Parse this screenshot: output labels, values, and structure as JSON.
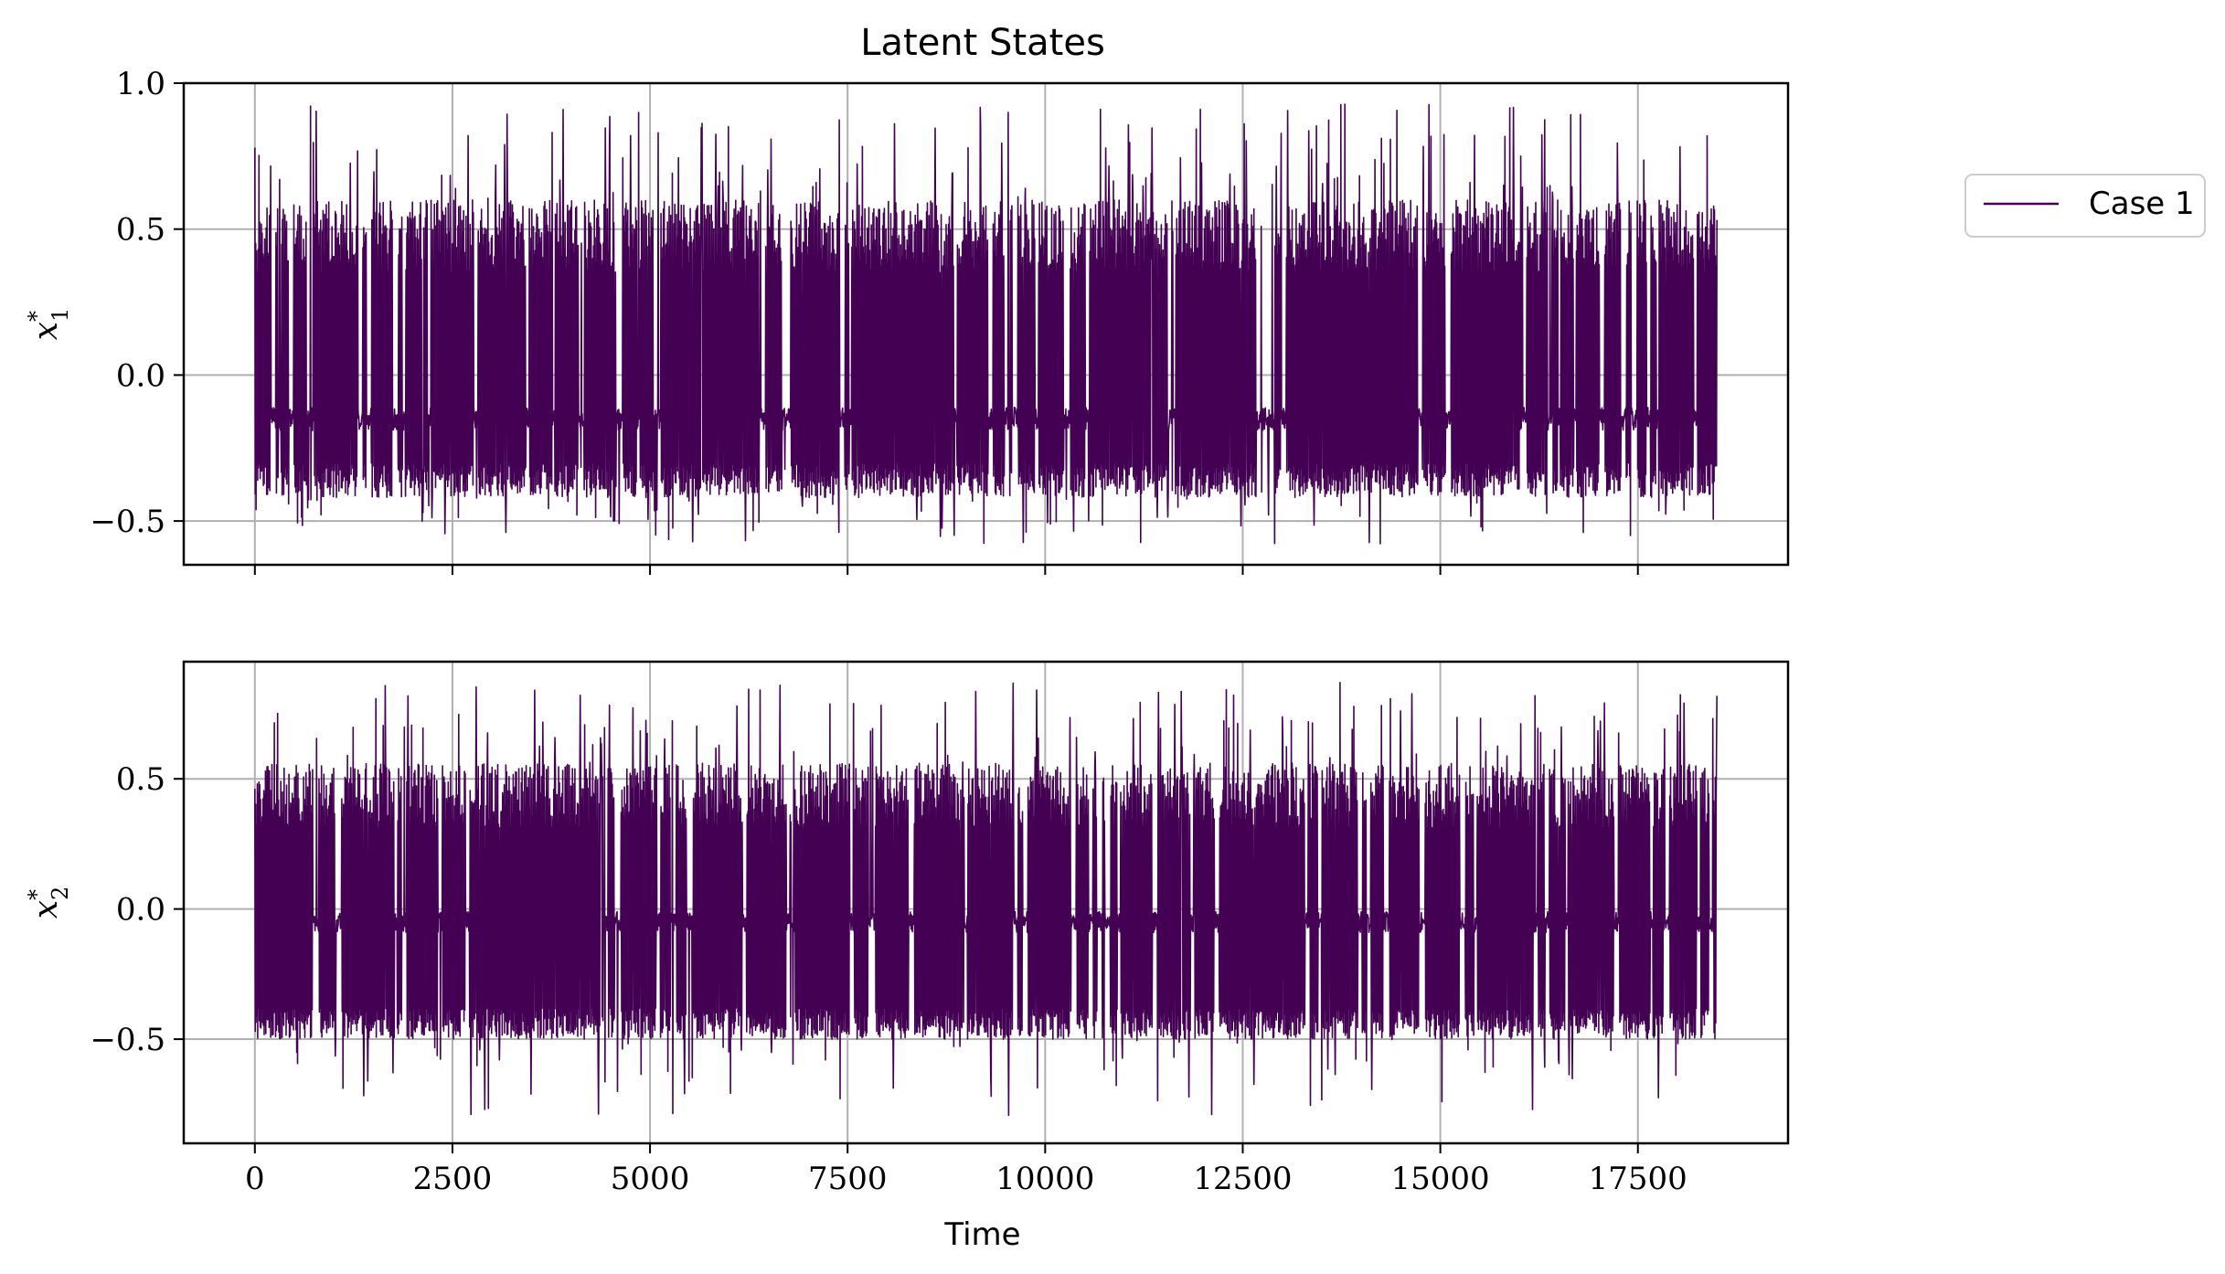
{
  "figure": {
    "title": "Latent States",
    "xlabel": "Time"
  },
  "legend": {
    "entries": [
      "Case 1"
    ],
    "placement": "right"
  },
  "colors": {
    "series": "#440154",
    "grid": "#b0b0b0",
    "axes": "#000000"
  },
  "chart_data": [
    {
      "type": "line",
      "ylabel_main": "x",
      "ylabel_sup": "*",
      "ylabel_sub": "1",
      "xlim": [
        -900,
        19400
      ],
      "ylim": [
        -0.65,
        1.0
      ],
      "xticks": [
        0,
        2500,
        5000,
        7500,
        10000,
        12500,
        15000,
        17500
      ],
      "xtick_labels": [],
      "yticks": [
        -0.5,
        0.0,
        0.5,
        1.0
      ],
      "ytick_labels": [
        "−0.5",
        "0.0",
        "0.5",
        "1.0"
      ],
      "grid": true,
      "series": [
        {
          "name": "Case 1",
          "x_range": [
            0,
            18500
          ],
          "baseline": -0.15,
          "band": [
            -0.42,
            0.6
          ],
          "spike_max": 0.93,
          "trough_min": -0.58
        }
      ]
    },
    {
      "type": "line",
      "ylabel_main": "x",
      "ylabel_sup": "*",
      "ylabel_sub": "2",
      "xlim": [
        -900,
        19400
      ],
      "ylim": [
        -0.9,
        0.95
      ],
      "xticks": [
        0,
        2500,
        5000,
        7500,
        10000,
        12500,
        15000,
        17500
      ],
      "xtick_labels": [
        "0",
        "2500",
        "5000",
        "7500",
        "10000",
        "12500",
        "15000",
        "17500"
      ],
      "yticks": [
        -0.5,
        0.0,
        0.5
      ],
      "ytick_labels": [
        "−0.5",
        "0.0",
        "0.5"
      ],
      "grid": true,
      "series": [
        {
          "name": "Case 1",
          "x_range": [
            0,
            18500
          ],
          "baseline": -0.05,
          "band": [
            -0.5,
            0.56
          ],
          "spike_max": 0.87,
          "trough_min": -0.8
        }
      ]
    }
  ]
}
